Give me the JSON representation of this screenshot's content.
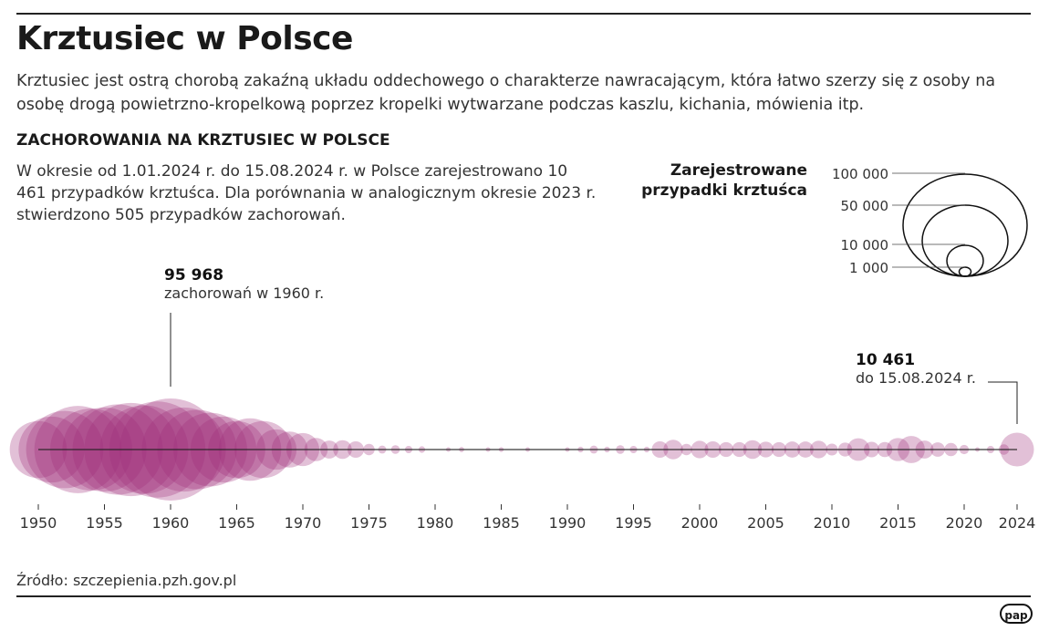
{
  "title": "Krztusiec w Polsce",
  "lead": "Krztusiec jest ostrą chorobą zakaźną układu oddechowego o charakterze nawracającym, która łatwo szerzy się z osoby na osobę drogą powietrzno-kropelkową poprzez kropelki wytwarzane podczas kaszlu, kichania, mówienia itp.",
  "subtitle": "ZACHOROWANIA NA KRZTUSIEC W POLSCE",
  "description": "W okresie od 1.01.2024 r. do 15.08.2024 r. w Polsce zarejestrowano 10 461 przypadków krztuśca. Dla porównania w analogicznym okresie 2023 r. stwierdzono 505 przypadków zachorowań.",
  "annotations": [
    {
      "value": "95 968",
      "text": "zachorowań w 1960 r."
    },
    {
      "value": "10 461",
      "text": "do 15.08.2024 r."
    }
  ],
  "source": "Źródło: szczepienia.pzh.gov.pl",
  "logo": "pap",
  "chart_data": {
    "type": "bubble",
    "title": "ZACHOROWANIA NA KRZTUSIEC W POLSCE",
    "color": "#a0307a",
    "legend": {
      "title": "Zarejestrowane przypadki krztuśca",
      "values": [
        100000,
        50000,
        10000,
        1000
      ],
      "labels": [
        "100 000",
        "50 000",
        "10 000",
        "1 000"
      ],
      "placement": "top-right"
    },
    "xlim": [
      1950,
      2024
    ],
    "xticks": [
      "1950",
      "1955",
      "1960",
      "1965",
      "1970",
      "1975",
      "1980",
      "1985",
      "1990",
      "1995",
      "2000",
      "2005",
      "2010",
      "2015",
      "2020",
      "2024"
    ],
    "points": [
      [
        1950,
        30000
      ],
      [
        1951,
        40000
      ],
      [
        1952,
        55000
      ],
      [
        1953,
        70000
      ],
      [
        1954,
        62000
      ],
      [
        1955,
        65000
      ],
      [
        1956,
        75000
      ],
      [
        1957,
        80000
      ],
      [
        1958,
        72000
      ],
      [
        1959,
        85000
      ],
      [
        1960,
        95968
      ],
      [
        1961,
        65000
      ],
      [
        1962,
        58000
      ],
      [
        1963,
        50000
      ],
      [
        1964,
        40000
      ],
      [
        1965,
        30000
      ],
      [
        1966,
        36000
      ],
      [
        1967,
        30000
      ],
      [
        1968,
        15000
      ],
      [
        1969,
        12000
      ],
      [
        1970,
        10000
      ],
      [
        1971,
        5000
      ],
      [
        1972,
        3000
      ],
      [
        1973,
        3200
      ],
      [
        1974,
        2500
      ],
      [
        1975,
        1200
      ],
      [
        1976,
        600
      ],
      [
        1977,
        700
      ],
      [
        1978,
        500
      ],
      [
        1979,
        400
      ],
      [
        1981,
        200
      ],
      [
        1982,
        250
      ],
      [
        1984,
        200
      ],
      [
        1985,
        220
      ],
      [
        1987,
        200
      ],
      [
        1990,
        200
      ],
      [
        1991,
        300
      ],
      [
        1992,
        600
      ],
      [
        1993,
        300
      ],
      [
        1994,
        700
      ],
      [
        1995,
        500
      ],
      [
        1996,
        300
      ],
      [
        1997,
        2500
      ],
      [
        1998,
        3500
      ],
      [
        1999,
        1200
      ],
      [
        2000,
        2800
      ],
      [
        2001,
        2500
      ],
      [
        2002,
        2000
      ],
      [
        2003,
        2000
      ],
      [
        2004,
        3200
      ],
      [
        2005,
        2300
      ],
      [
        2006,
        2000
      ],
      [
        2007,
        2400
      ],
      [
        2008,
        2400
      ],
      [
        2009,
        2800
      ],
      [
        2010,
        1300
      ],
      [
        2011,
        1800
      ],
      [
        2012,
        4700
      ],
      [
        2013,
        2200
      ],
      [
        2014,
        2100
      ],
      [
        2015,
        4900
      ],
      [
        2016,
        6800
      ],
      [
        2017,
        3000
      ],
      [
        2018,
        1900
      ],
      [
        2019,
        1600
      ],
      [
        2020,
        800
      ],
      [
        2021,
        150
      ],
      [
        2022,
        500
      ],
      [
        2023,
        1000
      ],
      [
        2024,
        10461
      ]
    ]
  }
}
